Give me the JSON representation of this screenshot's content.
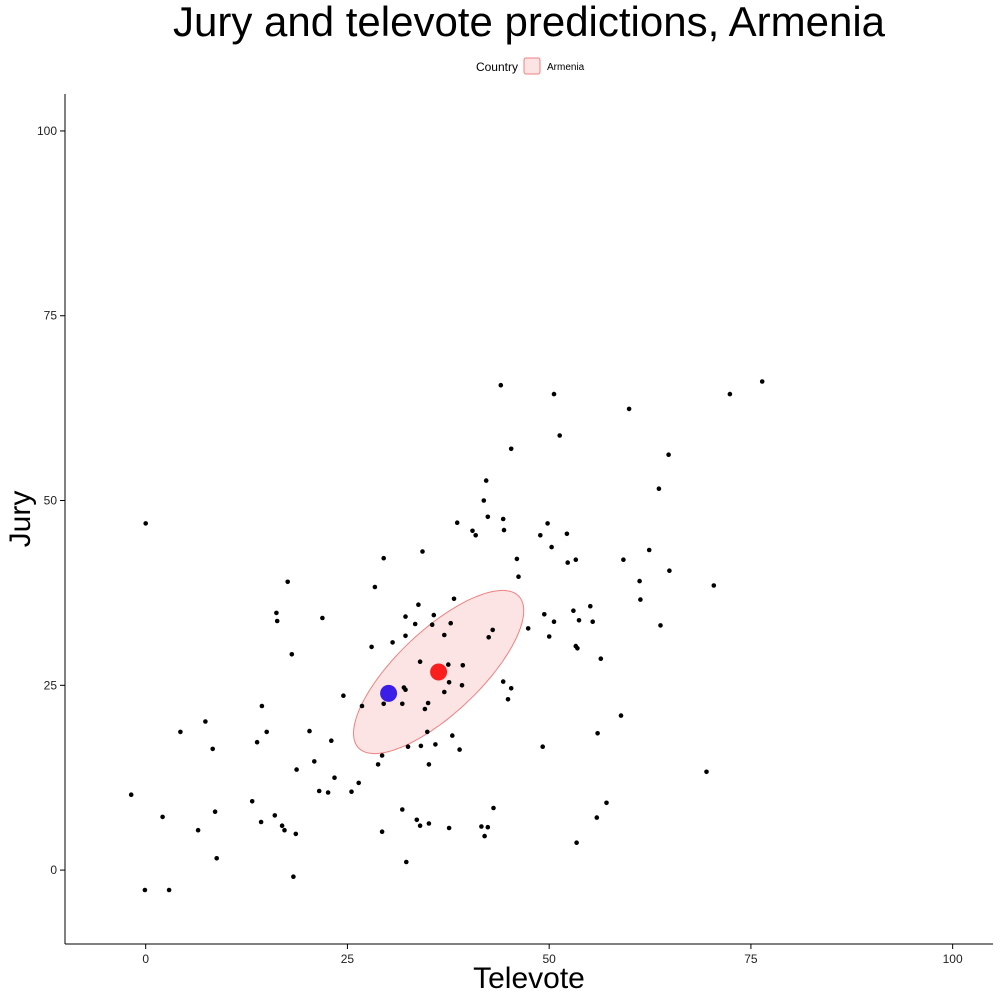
{
  "chart_data": {
    "type": "scatter",
    "title": "Jury and televote predictions, Armenia",
    "xlabel": "Televote",
    "ylabel": "Jury",
    "xlim": [
      -10,
      105
    ],
    "ylim": [
      -10,
      105
    ],
    "xticks": [
      0,
      25,
      50,
      75,
      100
    ],
    "yticks": [
      0,
      25,
      50,
      75,
      100
    ],
    "grid": false,
    "legend": {
      "title": "Country",
      "placement": "top-center",
      "items": [
        {
          "label": "Armenia",
          "fill": "#fce4e4",
          "stroke": "#f08080"
        }
      ]
    },
    "points": [
      [
        -1.8,
        10.2
      ],
      [
        -0.1,
        -2.7
      ],
      [
        0,
        46.9
      ],
      [
        2.1,
        7.2
      ],
      [
        2.9,
        -2.7
      ],
      [
        4.3,
        18.7
      ],
      [
        6.5,
        5.4
      ],
      [
        7.4,
        20.1
      ],
      [
        8.3,
        16.4
      ],
      [
        8.6,
        7.9
      ],
      [
        8.8,
        1.6
      ],
      [
        13.2,
        9.3
      ],
      [
        13.8,
        17.3
      ],
      [
        14.3,
        6.5
      ],
      [
        14.4,
        22.2
      ],
      [
        15.0,
        18.7
      ],
      [
        16.0,
        7.4
      ],
      [
        16.2,
        34.8
      ],
      [
        16.3,
        33.7
      ],
      [
        16.9,
        6.0
      ],
      [
        17.2,
        5.4
      ],
      [
        17.6,
        39.0
      ],
      [
        18.1,
        29.2
      ],
      [
        18.3,
        -0.9
      ],
      [
        18.6,
        4.9
      ],
      [
        18.7,
        13.6
      ],
      [
        20.3,
        18.8
      ],
      [
        20.9,
        14.7
      ],
      [
        21.5,
        10.7
      ],
      [
        21.9,
        34.1
      ],
      [
        22.6,
        10.5
      ],
      [
        23.0,
        17.5
      ],
      [
        23.4,
        12.5
      ],
      [
        24.5,
        23.6
      ],
      [
        25.5,
        10.6
      ],
      [
        26.4,
        11.8
      ],
      [
        26.8,
        22.2
      ],
      [
        28.0,
        30.2
      ],
      [
        28.4,
        38.3
      ],
      [
        28.8,
        14.3
      ],
      [
        29.3,
        15.5
      ],
      [
        29.3,
        5.2
      ],
      [
        29.5,
        42.2
      ],
      [
        29.5,
        22.5
      ],
      [
        30.6,
        30.8
      ],
      [
        31.8,
        22.5
      ],
      [
        31.8,
        8.2
      ],
      [
        32.0,
        24.7
      ],
      [
        32.2,
        24.4
      ],
      [
        32.2,
        34.3
      ],
      [
        32.2,
        31.7
      ],
      [
        32.3,
        1.1
      ],
      [
        32.5,
        16.7
      ],
      [
        33.4,
        33.3
      ],
      [
        33.6,
        6.8
      ],
      [
        33.8,
        35.9
      ],
      [
        34.0,
        28.2
      ],
      [
        34.1,
        16.8
      ],
      [
        34.0,
        6.0
      ],
      [
        34.3,
        43.1
      ],
      [
        34.6,
        21.8
      ],
      [
        35.0,
        22.6
      ],
      [
        34.9,
        18.7
      ],
      [
        35.1,
        14.3
      ],
      [
        35.1,
        6.3
      ],
      [
        35.5,
        33.2
      ],
      [
        35.7,
        34.5
      ],
      [
        35.9,
        17.0
      ],
      [
        37.0,
        31.8
      ],
      [
        37.0,
        24.1
      ],
      [
        37.5,
        27.8
      ],
      [
        37.6,
        5.7
      ],
      [
        37.6,
        25.4
      ],
      [
        37.8,
        33.4
      ],
      [
        38.0,
        18.2
      ],
      [
        38.2,
        36.7
      ],
      [
        38.6,
        47.0
      ],
      [
        38.9,
        16.3
      ],
      [
        39.2,
        25.0
      ],
      [
        39.3,
        27.7
      ],
      [
        40.5,
        45.9
      ],
      [
        40.9,
        45.3
      ],
      [
        41.6,
        5.9
      ],
      [
        41.9,
        50.0
      ],
      [
        42.0,
        4.6
      ],
      [
        42.2,
        52.7
      ],
      [
        42.4,
        47.8
      ],
      [
        42.4,
        5.8
      ],
      [
        42.5,
        31.5
      ],
      [
        43.0,
        32.5
      ],
      [
        43.1,
        8.4
      ],
      [
        44.0,
        65.6
      ],
      [
        44.3,
        25.5
      ],
      [
        44.3,
        47.5
      ],
      [
        44.4,
        46.0
      ],
      [
        44.9,
        23.1
      ],
      [
        45.3,
        24.6
      ],
      [
        45.3,
        57.0
      ],
      [
        46.0,
        42.1
      ],
      [
        46.2,
        39.7
      ],
      [
        47.4,
        32.7
      ],
      [
        48.9,
        45.3
      ],
      [
        49.2,
        16.7
      ],
      [
        49.4,
        34.6
      ],
      [
        49.8,
        46.9
      ],
      [
        50.0,
        31.6
      ],
      [
        50.3,
        43.7
      ],
      [
        50.6,
        64.4
      ],
      [
        50.6,
        33.6
      ],
      [
        51.3,
        58.8
      ],
      [
        52.2,
        45.5
      ],
      [
        52.3,
        41.6
      ],
      [
        53.0,
        35.1
      ],
      [
        53.3,
        42.0
      ],
      [
        53.3,
        30.3
      ],
      [
        53.4,
        3.7
      ],
      [
        53.5,
        30.0
      ],
      [
        53.7,
        33.8
      ],
      [
        55.1,
        35.7
      ],
      [
        55.4,
        33.6
      ],
      [
        55.9,
        7.1
      ],
      [
        56.0,
        18.5
      ],
      [
        56.4,
        28.6
      ],
      [
        57.1,
        9.1
      ],
      [
        58.9,
        20.9
      ],
      [
        59.2,
        42.0
      ],
      [
        59.9,
        62.4
      ],
      [
        61.2,
        39.1
      ],
      [
        61.3,
        36.6
      ],
      [
        62.4,
        43.3
      ],
      [
        63.6,
        51.6
      ],
      [
        63.8,
        33.1
      ],
      [
        64.8,
        56.2
      ],
      [
        64.9,
        40.5
      ],
      [
        69.5,
        13.3
      ],
      [
        70.4,
        38.5
      ],
      [
        72.4,
        64.4
      ],
      [
        76.4,
        66.1
      ]
    ],
    "highlight_points": [
      {
        "x": 30.1,
        "y": 23.9,
        "color": "#3a1ee8"
      },
      {
        "x": 36.3,
        "y": 26.8,
        "color": "#fa1e1e"
      }
    ],
    "ellipse": {
      "country": "Armenia",
      "center": [
        36.3,
        26.8
      ],
      "half_axis_major": [
        9.8,
        10.4
      ],
      "half_axis_minor": [
        -3.9,
        3.7
      ],
      "fill": "#fce4e4",
      "stroke": "#f08080"
    }
  }
}
